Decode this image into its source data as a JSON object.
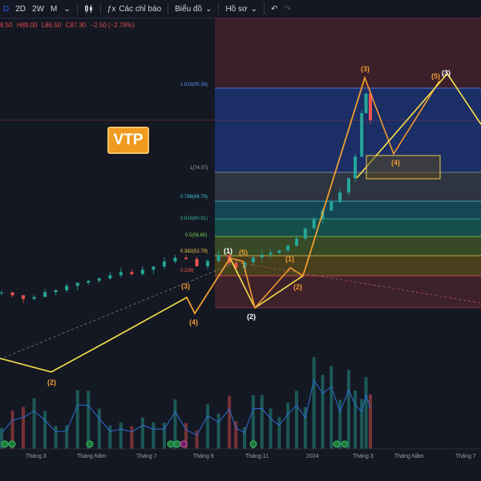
{
  "toolbar": {
    "interval_cut": "D",
    "intervals": [
      "2D",
      "2W",
      "M"
    ],
    "indicators_label": "Các chỉ báo",
    "chart_type_label": "Biểu đồ",
    "profile_label": "Hồ sơ"
  },
  "ohlc": {
    "open_cut": "8.50",
    "high": "H89.00",
    "low": "L86.50",
    "close": "C87.30",
    "change": "−2.50 (−2.78%)"
  },
  "symbol_badge": "VTP",
  "fib_levels": [
    {
      "label": "1.618(95.36)",
      "value": 95.36,
      "color": "#5d8bf4"
    },
    {
      "label": "1(74.07)",
      "value": 74.07,
      "color": "#9aa0ad"
    },
    {
      "label": "0.786(66.70)",
      "value": 66.7,
      "color": "#3ec6d8"
    },
    {
      "label": "0.618(60.91)",
      "value": 60.91,
      "color": "#36b4a0"
    },
    {
      "label": "0.5(56.85)",
      "value": 56.85,
      "color": "#7fcf55"
    },
    {
      "label": "0.382(52.78)",
      "value": 52.78,
      "color": "#f2c94c"
    },
    {
      "label": "0.236(",
      "value": 47.76,
      "color": "#f0544f"
    }
  ],
  "wave_labels": {
    "w_2_early": "(2)",
    "w_3_mid": "(3)",
    "w_4_mid": "(4)",
    "w_1_top": "(1)",
    "w_5_top": "(5)",
    "w_2_low": "(2)",
    "w_1_small": "(1)",
    "w_2_small": "(2)",
    "w_3_peak": "(3)",
    "w_4_box": "(4)",
    "w_5_right": "(5)",
    "w_3_right": "(3)"
  },
  "x_axis": [
    "Tháng 3",
    "Tháng Năm",
    "Tháng 7",
    "Tháng 9",
    "Tháng 11",
    "2024",
    "Tháng 3",
    "Tháng Năm",
    "Tháng 7"
  ],
  "colors": {
    "up": "#26a69a",
    "down": "#ef5350",
    "wave_yellow": "#f5e04a",
    "wave_orange": "#f29a2e",
    "volume_ma": "#2f6fd6"
  },
  "chart_data": {
    "type": "candlestick",
    "price_path": [
      [
        0,
        43.5
      ],
      [
        5,
        42.8
      ],
      [
        10,
        41.9
      ],
      [
        15,
        42.4
      ],
      [
        20,
        43.6
      ],
      [
        25,
        44.1
      ],
      [
        30,
        45.2
      ],
      [
        35,
        46.0
      ],
      [
        40,
        46.5
      ],
      [
        45,
        47.1
      ],
      [
        50,
        47.9
      ],
      [
        55,
        48.7
      ],
      [
        60,
        48.2
      ],
      [
        65,
        49.3
      ],
      [
        70,
        50.1
      ],
      [
        75,
        51.4
      ],
      [
        80,
        52.3
      ],
      [
        85,
        52.0
      ],
      [
        90,
        50.2
      ],
      [
        95,
        51.5
      ],
      [
        100,
        53.0
      ],
      [
        105,
        51.0
      ],
      [
        108,
        49.7
      ],
      [
        112,
        51.2
      ],
      [
        116,
        52.4
      ],
      [
        120,
        53.1
      ],
      [
        124,
        53.6
      ],
      [
        128,
        54.2
      ],
      [
        132,
        55.4
      ],
      [
        136,
        57.2
      ],
      [
        140,
        59.8
      ],
      [
        144,
        62.1
      ],
      [
        148,
        64.3
      ],
      [
        152,
        66.5
      ],
      [
        156,
        68.9
      ],
      [
        160,
        72.5
      ],
      [
        163,
        78.0
      ],
      [
        166,
        89.0
      ],
      [
        168,
        94.0
      ],
      [
        170,
        87.3
      ]
    ]
  }
}
